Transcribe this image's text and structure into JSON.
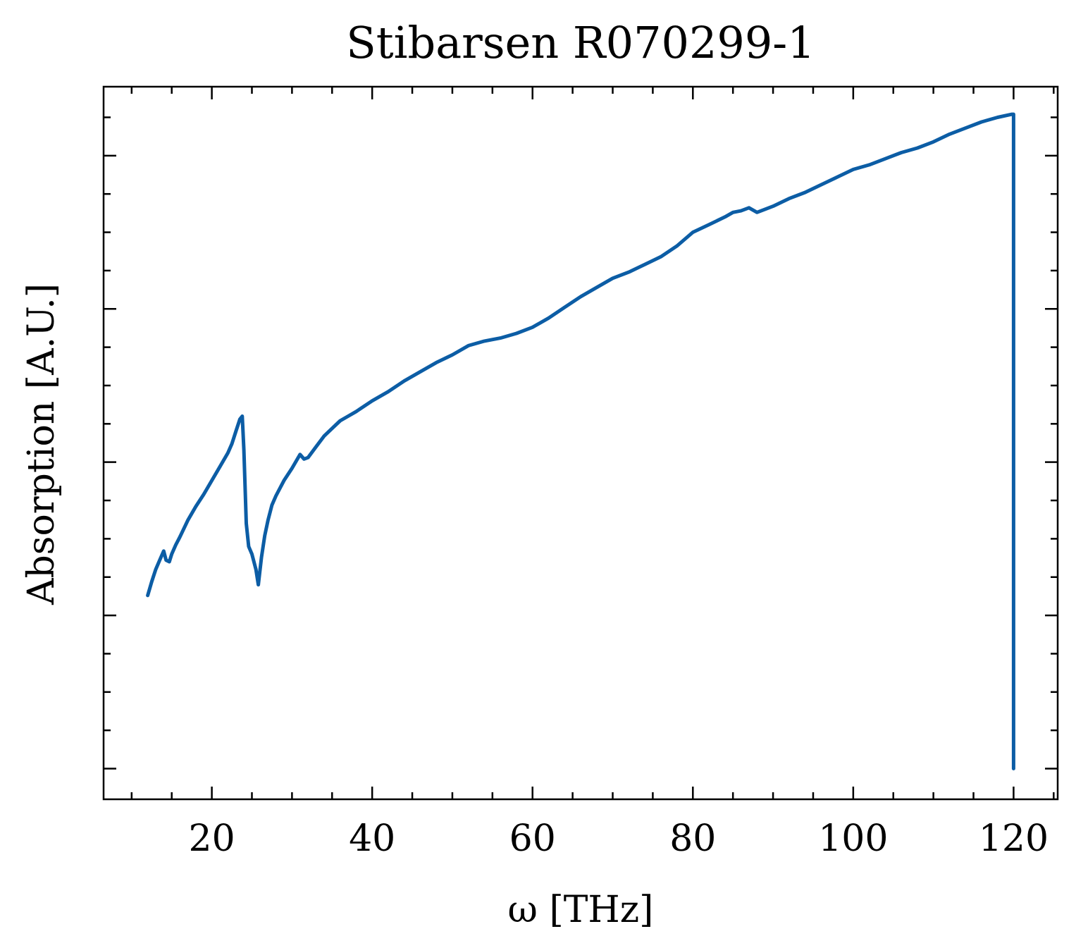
{
  "chart_data": {
    "type": "line",
    "title": "Stibarsen R070299-1",
    "xlabel": "ω [THz]",
    "ylabel": "Absorption [A.U.]",
    "xlim": [
      6.5,
      125.5
    ],
    "ylim": [
      -0.2,
      4.45
    ],
    "xticks": [
      20,
      40,
      60,
      80,
      100,
      120
    ],
    "xtick_labels": [
      "20",
      "40",
      "60",
      "80",
      "100",
      "120"
    ],
    "yticks": [
      0,
      1,
      2,
      3,
      4
    ],
    "ytick_labels": [],
    "grid": false,
    "legend": "none",
    "colors": {
      "line": "#0C5DA5",
      "axes": "#000000",
      "background": "#ffffff"
    },
    "series": [
      {
        "x": [
          12.0,
          12.5,
          13.0,
          13.5,
          14.0,
          14.3,
          14.7,
          15.0,
          15.5,
          16.0,
          17.0,
          18.0,
          19.0,
          20.0,
          21.0,
          22.0,
          22.5,
          23.0,
          23.5,
          23.8,
          24.0,
          24.3,
          24.6,
          25.0,
          25.5,
          25.8,
          26.2,
          26.6,
          27.0,
          27.5,
          28.0,
          29.0,
          30.0,
          31.0,
          31.5,
          32.0,
          33.0,
          34.0,
          35.0,
          36.0,
          37.0,
          38.0,
          40.0,
          42.0,
          44.0,
          46.0,
          48.0,
          50.0,
          52.0,
          54.0,
          56.0,
          58.0,
          60.0,
          62.0,
          64.0,
          66.0,
          68.0,
          70.0,
          72.0,
          74.0,
          76.0,
          78.0,
          80.0,
          82.0,
          84.0,
          85.0,
          86.0,
          87.0,
          88.0,
          90.0,
          92.0,
          94.0,
          96.0,
          98.0,
          100.0,
          102.0,
          104.0,
          106.0,
          108.0,
          110.0,
          112.0,
          114.0,
          116.0,
          118.0,
          119.8,
          120.0,
          120.0
        ],
        "values": [
          1.13,
          1.22,
          1.3,
          1.36,
          1.42,
          1.36,
          1.35,
          1.4,
          1.46,
          1.51,
          1.62,
          1.71,
          1.79,
          1.88,
          1.97,
          2.06,
          2.12,
          2.2,
          2.28,
          2.3,
          2.08,
          1.6,
          1.45,
          1.4,
          1.3,
          1.2,
          1.38,
          1.52,
          1.62,
          1.72,
          1.78,
          1.88,
          1.96,
          2.05,
          2.02,
          2.03,
          2.1,
          2.17,
          2.22,
          2.27,
          2.3,
          2.33,
          2.4,
          2.46,
          2.53,
          2.59,
          2.65,
          2.7,
          2.76,
          2.79,
          2.81,
          2.84,
          2.88,
          2.94,
          3.01,
          3.08,
          3.14,
          3.2,
          3.24,
          3.29,
          3.34,
          3.41,
          3.5,
          3.55,
          3.6,
          3.63,
          3.64,
          3.66,
          3.63,
          3.67,
          3.72,
          3.76,
          3.81,
          3.86,
          3.91,
          3.94,
          3.98,
          4.02,
          4.05,
          4.09,
          4.14,
          4.18,
          4.22,
          4.25,
          4.27,
          4.27,
          0.0
        ]
      }
    ]
  }
}
